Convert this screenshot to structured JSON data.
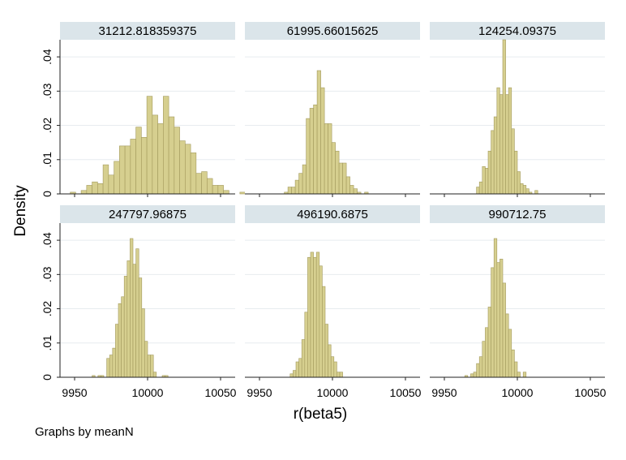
{
  "chart_data": {
    "type": "bar",
    "subtype": "histogram-small-multiples",
    "ylabel": "Density",
    "xlabel": "r(beta5)",
    "note": "Graphs by meanN",
    "xlim": [
      9940,
      10060
    ],
    "ylim": [
      0,
      0.045
    ],
    "x_ticks": [
      "9950",
      "10000",
      "10050"
    ],
    "y_ticks": [
      "0",
      ".01",
      ".02",
      ".03",
      ".04"
    ],
    "grid": true,
    "bar_color": "#d6cf8f",
    "bar_edge_color": "#a39a5c",
    "strip_color": "#dbe5ea",
    "panels": [
      {
        "title": "31212.818359375",
        "bin_start": 9947,
        "bin_width": 3.75,
        "values": [
          0.0005,
          0,
          0.001,
          0.0025,
          0.0035,
          0.003,
          0.0085,
          0.0055,
          0.0095,
          0.014,
          0.014,
          0.016,
          0.0195,
          0.0165,
          0.0285,
          0.023,
          0.0205,
          0.0285,
          0.0225,
          0.0195,
          0.0155,
          0.0145,
          0.012,
          0.006,
          0.0065,
          0.0045,
          0.0025,
          0.0025,
          0.001,
          0,
          0,
          0.0005,
          0,
          0.0005
        ]
      },
      {
        "title": "61995.66015625",
        "bin_start": 9967,
        "bin_width": 2.5,
        "values": [
          0.0005,
          0.002,
          0.002,
          0.004,
          0.006,
          0.0085,
          0.022,
          0.025,
          0.026,
          0.036,
          0.031,
          0.0205,
          0.0205,
          0.015,
          0.0125,
          0.009,
          0.009,
          0.005,
          0.0025,
          0.0015,
          0.0005,
          0,
          0.0005
        ]
      },
      {
        "title": "124254.09375",
        "bin_start": 9972,
        "bin_width": 2,
        "values": [
          0.002,
          0.0035,
          0.008,
          0.0075,
          0.0125,
          0.0185,
          0.0225,
          0.031,
          0.029,
          0.045,
          0.029,
          0.031,
          0.019,
          0.0125,
          0.0065,
          0.003,
          0.0025,
          0.0015,
          0.0005,
          0,
          0.001
        ]
      },
      {
        "title": "247797.96875",
        "bin_start": 9962,
        "bin_width": 2,
        "values": [
          0.0005,
          0,
          0.0005,
          0.0005,
          0,
          0.0055,
          0.0065,
          0.0085,
          0.0155,
          0.0215,
          0.0235,
          0.0295,
          0.034,
          0.0405,
          0.033,
          0.0375,
          0.029,
          0.02,
          0.0105,
          0.0065,
          0.0065,
          0.0015,
          0,
          0,
          0.0005,
          0.0005
        ]
      },
      {
        "title": "496190.6875",
        "bin_start": 9971,
        "bin_width": 2,
        "values": [
          0.001,
          0.002,
          0.0045,
          0.0055,
          0.011,
          0.019,
          0.035,
          0.0365,
          0.035,
          0.0365,
          0.0325,
          0.0265,
          0.0155,
          0.0095,
          0.006,
          0.0045,
          0.0015,
          0.0015
        ]
      },
      {
        "title": "990712.75",
        "bin_start": 9964,
        "bin_width": 2,
        "values": [
          0.0005,
          0,
          0.001,
          0.0015,
          0.004,
          0.006,
          0.0105,
          0.0145,
          0.0205,
          0.032,
          0.0405,
          0.0335,
          0.0345,
          0.0275,
          0.0185,
          0.014,
          0.008,
          0.0045,
          0.0015,
          0,
          0.0015
        ]
      }
    ]
  }
}
